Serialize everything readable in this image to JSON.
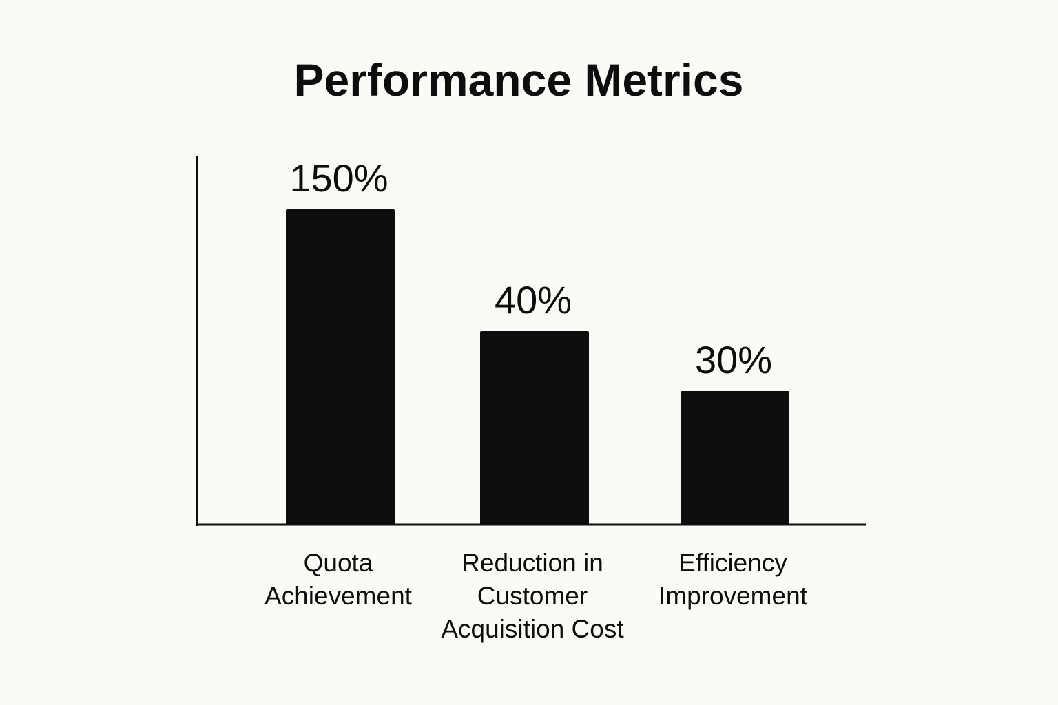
{
  "chart_data": {
    "type": "bar",
    "title": "Performance Metrics",
    "xlabel": "",
    "ylabel": "",
    "categories": [
      "Quota Achievement",
      "Reduction in Customer Acquisition Cost",
      "Efficiency Improvement"
    ],
    "category_label_lines": [
      [
        "Quota",
        "Achievement"
      ],
      [
        "Reduction in",
        "Customer",
        "Acquisition Cost"
      ],
      [
        "Efficiency",
        "Improvement"
      ]
    ],
    "values": [
      150,
      40,
      30
    ],
    "data_labels": [
      "150%",
      "40%",
      "30%"
    ],
    "bar_color": "#0d0d0d",
    "grid": false,
    "legend": "none"
  }
}
